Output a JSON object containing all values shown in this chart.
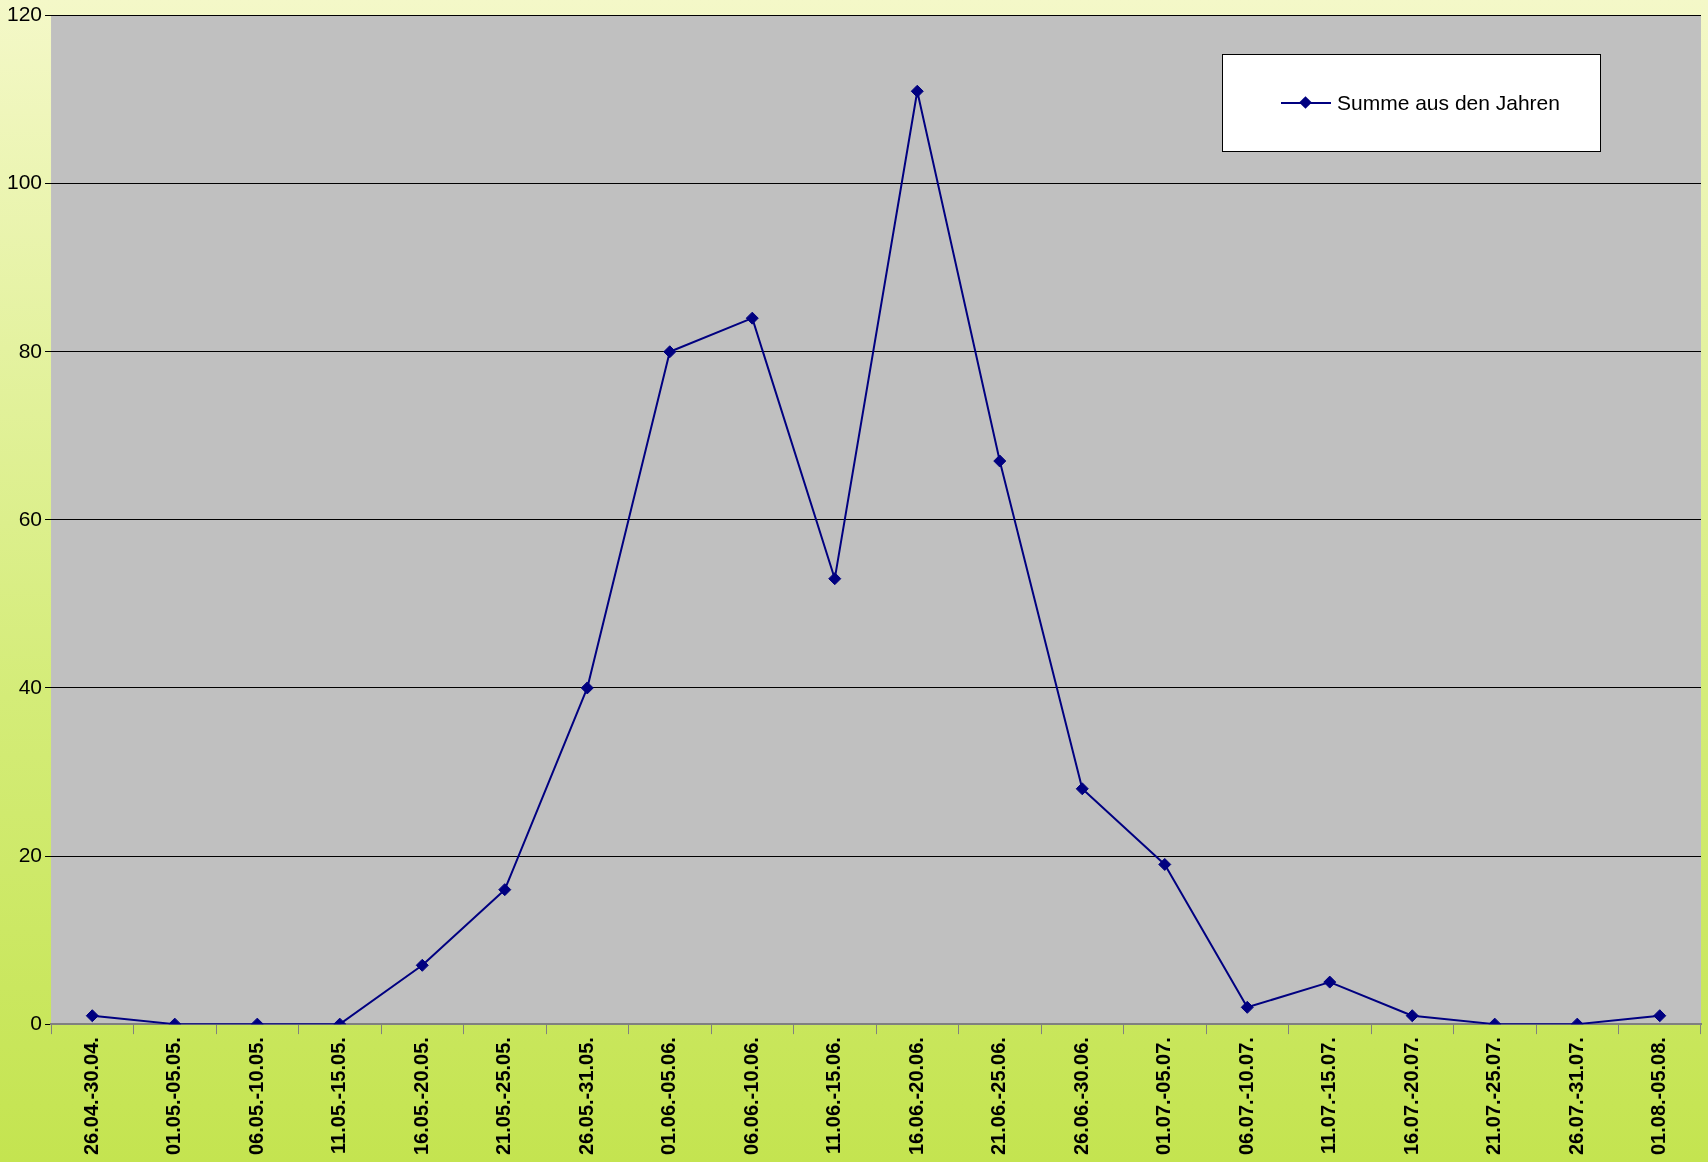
{
  "chart_data": {
    "type": "line",
    "categories": [
      "26.04.-30.04.",
      "01.05.-05.05.",
      "06.05.-10.05.",
      "11.05.-15.05.",
      "16.05.-20.05.",
      "21.05.-25.05.",
      "26.05.-31.05.",
      "01.06.-05.06.",
      "06.06.-10.06.",
      "11.06.-15.06.",
      "16.06.-20.06.",
      "21.06.-25.06.",
      "26.06.-30.06.",
      "01.07.-05.07.",
      "06.07.-10.07.",
      "11.07.-15.07.",
      "16.07.-20.07.",
      "21.07.-25.07.",
      "26.07.-31.07.",
      "01.08.-05.08."
    ],
    "series": [
      {
        "name": "Summe aus den Jahren",
        "color": "#000080",
        "values": [
          1,
          0,
          0,
          0,
          7,
          16,
          40,
          80,
          84,
          53,
          111,
          67,
          28,
          19,
          2,
          5,
          1,
          0,
          0,
          1
        ]
      }
    ],
    "ylim": [
      0,
      120
    ],
    "yticks": [
      0,
      20,
      40,
      60,
      80,
      100,
      120
    ],
    "grid": "y",
    "legend": "top right",
    "marker": "diamond",
    "line_style": "solid"
  }
}
